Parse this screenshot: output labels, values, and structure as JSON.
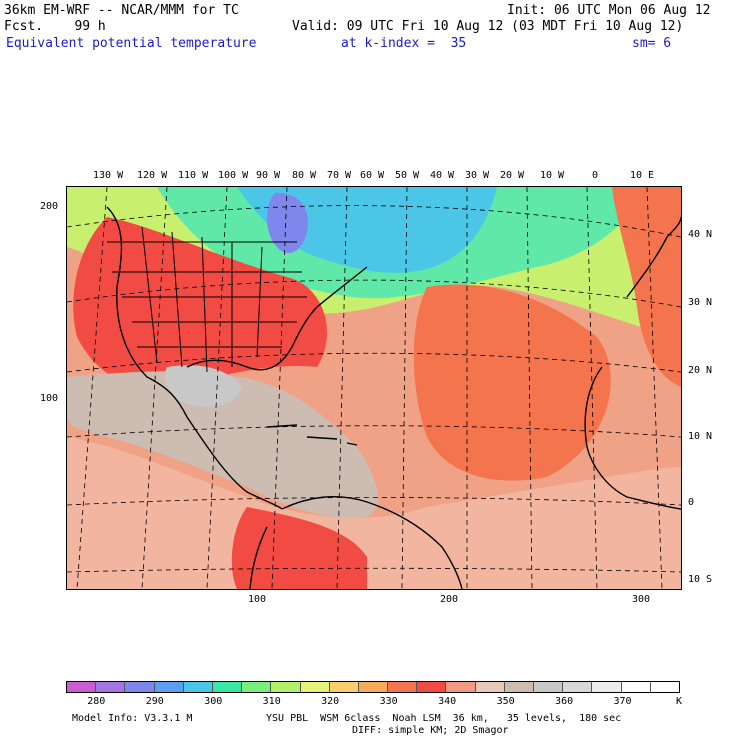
{
  "header": {
    "model_line": "36km EM-WRF -- NCAR/MMM for TC",
    "fcst_line": "Fcst.    99 h",
    "init_line": "Init: 06 UTC Mon 06 Aug 12",
    "valid_line": "Valid: 09 UTC Fri 10 Aug 12 (03 MDT Fri 10 Aug 12)",
    "field_name": "Equivalent potential temperature",
    "level": "at k-index =  35",
    "smoothing": "sm= 6"
  },
  "map": {
    "longitude_labels": [
      "130 W",
      "120 W",
      "110 W",
      "100 W",
      "90 W",
      "80 W",
      "70 W",
      "60 W",
      "50 W",
      "40 W",
      "30 W",
      "20 W",
      "10 W",
      "0",
      "10 E"
    ],
    "latitude_labels": [
      "40 N",
      "30 N",
      "20 N",
      "10 N",
      "0",
      "10 S"
    ],
    "grid_y_labels": [
      "200",
      "100"
    ],
    "grid_x_labels": [
      "100",
      "200",
      "300"
    ]
  },
  "colorbar": {
    "labels": [
      "280",
      "290",
      "300",
      "310",
      "320",
      "330",
      "340",
      "350",
      "360",
      "370"
    ],
    "unit": "K",
    "colors": [
      "#c95ed1",
      "#a477e0",
      "#7f86ec",
      "#5a9ff0",
      "#4cc6e6",
      "#3de6a6",
      "#7aef7e",
      "#b3f06a",
      "#e8f276",
      "#f8cf6a",
      "#f7aa5a",
      "#f4744d",
      "#f24b44",
      "#f39885",
      "#e8c8b6",
      "#cdbcb2",
      "#c8c8c8",
      "#d8d8d8",
      "#ececec",
      "#ffffff",
      "#ffffff"
    ]
  },
  "footer": {
    "model_info": "Model Info: V3.3.1 M",
    "physics": "YSU PBL  WSM 6class  Noah LSM  36 km,   35 levels,  180 sec",
    "diffusion": "DIFF: simple KM; 2D Smagor"
  }
}
